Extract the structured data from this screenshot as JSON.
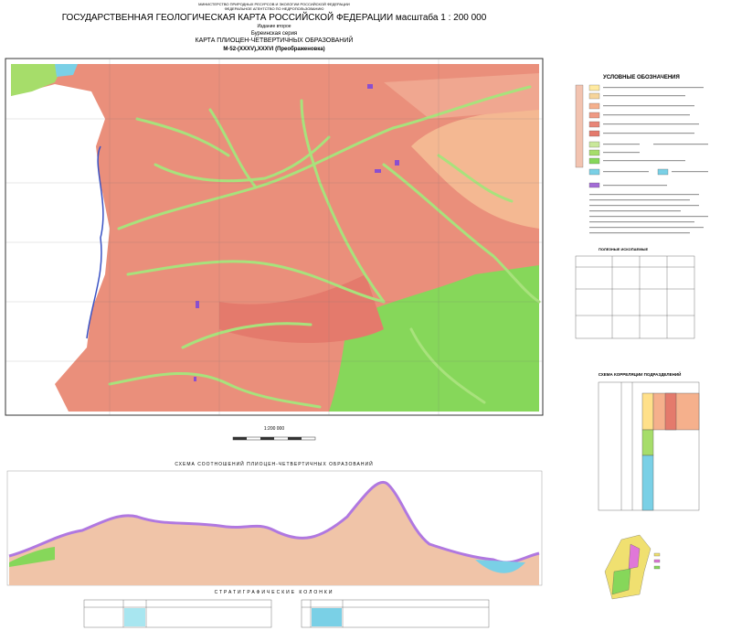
{
  "header": {
    "ministry": "МИНИСТЕРСТВО ПРИРОДНЫХ РЕСУРСОВ И ЭКОЛОГИИ РОССИЙСКОЙ ФЕДЕРАЦИИ",
    "agency": "ФЕДЕРАЛЬНОЕ АГЕНТСТВО ПО НЕДРОПОЛЬЗОВАНИЮ",
    "title": "ГОСУДАРСТВЕННАЯ ГЕОЛОГИЧЕСКАЯ КАРТА РОССИЙСКОЙ ФЕДЕРАЦИИ масштаба 1 : 200 000",
    "edition": "Издание второе",
    "series": "Буреинская серия",
    "map_title": "КАРТА ПЛИОЦЕН-ЧЕТВЕРТИЧНЫХ ОБРАЗОВАНИЙ",
    "sheet": "M-52-(XXXV),XXXVI (Преображеновка)"
  },
  "legend": {
    "title": "УСЛОВНЫЕ ОБОЗНАЧЕНИЯ",
    "minerals_title": "ПОЛЕЗНЫЕ ИСКОПАЕМЫЕ"
  },
  "scale": {
    "label": "1:200 000"
  },
  "correlation": {
    "title": "СХЕМА КОРРЕЛЯЦИИ ПОДРАЗДЕЛЕНИЙ"
  },
  "section": {
    "title": "СХЕМА СООТНОШЕНИЙ ПЛИОЦЕН-ЧЕТВЕРТИЧНЫХ ОБРАЗОВАНИЙ"
  },
  "columns": {
    "title": "СТРАТИГРАФИЧЕСКИЕ КОЛОНКИ"
  }
}
